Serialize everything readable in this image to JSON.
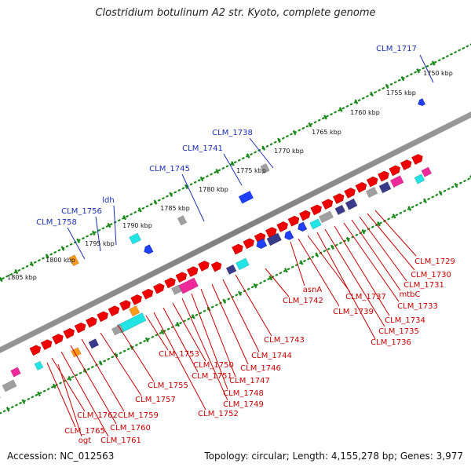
{
  "title": "Clostridium botulinum A2 str. Kyoto, complete genome",
  "footer": {
    "accession": "Accession: NC_012563",
    "topology": "Topology: circular; Length: 4,155,278 bp; Genes: 3,977"
  },
  "colors": {
    "backbone": "#8a8a8a",
    "forward_gene": "#ee0000",
    "reverse_gene": "#2040ff",
    "label_red": "#c40000",
    "label_blue": "#1a2fb0",
    "tick_green": "#1a8a1a",
    "cyan": "#22e4e4",
    "magenta": "#ee2a9a",
    "navy": "#3a3a8a",
    "orange": "#ff9a1a",
    "gray": "#a0a0a0"
  },
  "ruler": {
    "unit": "kbp",
    "labels": [
      "1750 kbp",
      "1755 kbp",
      "1760 kbp",
      "1765 kbp",
      "1770 kbp",
      "1775 kbp",
      "1780 kbp",
      "1785 kbp",
      "1790 kbp",
      "1795 kbp",
      "1800 kbp",
      "1805 kbp"
    ]
  },
  "gene_labels": {
    "red": [
      "CLM_1729",
      "CLM_1730",
      "CLM_1731",
      "mtbC",
      "CLM_1733",
      "CLM_1734",
      "CLM_1735",
      "CLM_1736",
      "CLM_1737",
      "CLM_1739",
      "asnA",
      "CLM_1742",
      "CLM_1743",
      "CLM_1744",
      "CLM_1746",
      "CLM_1747",
      "CLM_1748",
      "CLM_1749",
      "CLM_1750",
      "CLM_1751",
      "CLM_1752",
      "CLM_1753",
      "CLM_1755",
      "CLM_1757",
      "CLM_1759",
      "CLM_1760",
      "CLM_1761",
      "CLM_1762",
      "CLM_1765",
      "ogt"
    ],
    "blue": [
      "CLM_1717",
      "CLM_1738",
      "CLM_1741",
      "CLM_1745",
      "ldh",
      "CLM_1756",
      "CLM_1758"
    ]
  }
}
